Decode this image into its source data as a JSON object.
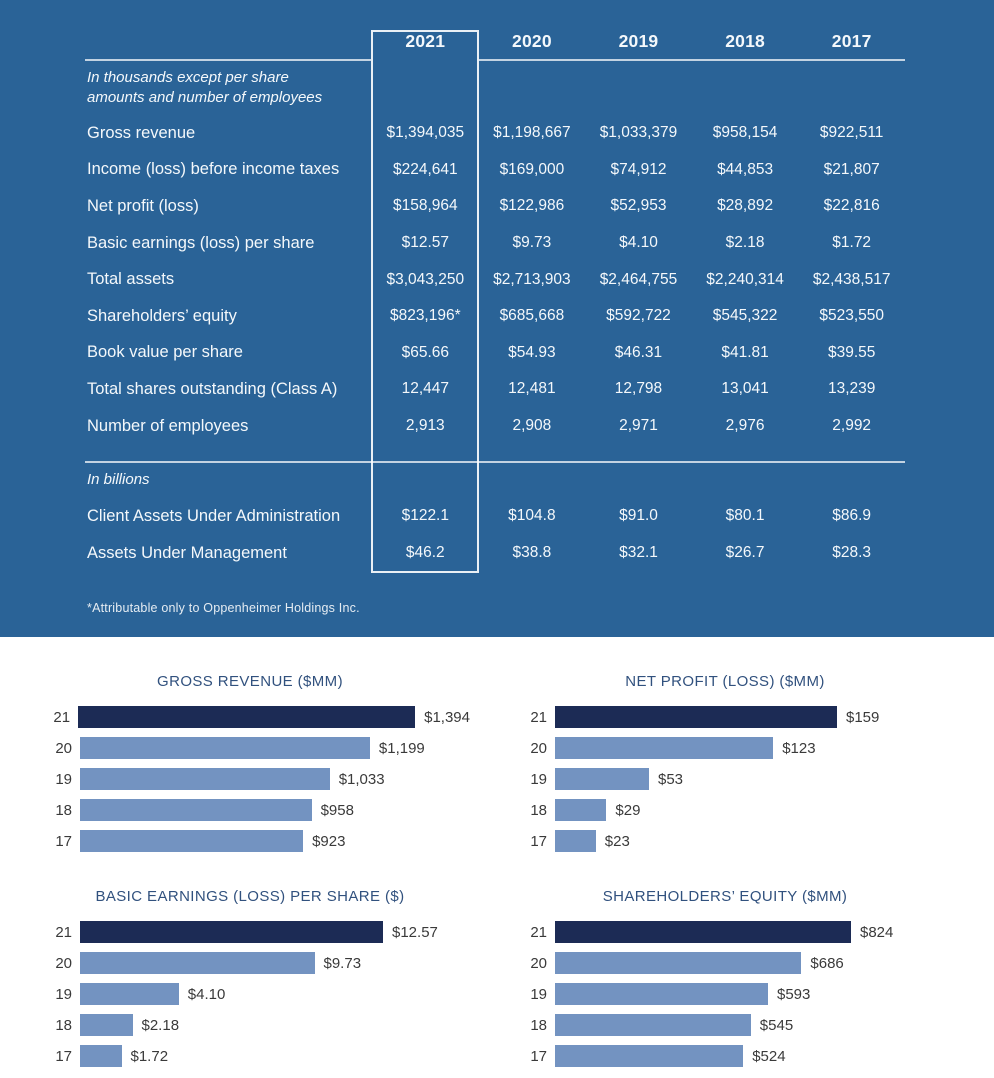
{
  "colors": {
    "panel": "#2a6397",
    "navy": "#1c2b55",
    "light": "#7393c1",
    "title": "#31517e",
    "ink": "#3a3a3a",
    "text": "#f4f8fb"
  },
  "table": {
    "years": [
      "2021",
      "2020",
      "2019",
      "2018",
      "2017"
    ],
    "note_thousands": "In thousands except per share amounts and number of employees",
    "rows": [
      {
        "label": "Gross revenue",
        "values": [
          "$1,394,035",
          "$1,198,667",
          "$1,033,379",
          "$958,154",
          "$922,511"
        ]
      },
      {
        "label": "Income (loss) before income taxes",
        "values": [
          "$224,641",
          "$169,000",
          "$74,912",
          "$44,853",
          "$21,807"
        ]
      },
      {
        "label": "Net profit (loss)",
        "values": [
          "$158,964",
          "$122,986",
          "$52,953",
          "$28,892",
          "$22,816"
        ]
      },
      {
        "label": "Basic earnings (loss) per share",
        "values": [
          "$12.57",
          "$9.73",
          "$4.10",
          "$2.18",
          "$1.72"
        ]
      },
      {
        "label": "Total assets",
        "values": [
          "$3,043,250",
          "$2,713,903",
          "$2,464,755",
          "$2,240,314",
          "$2,438,517"
        ]
      },
      {
        "label": "Shareholders’ equity",
        "values": [
          "$823,196*",
          "$685,668",
          "$592,722",
          "$545,322",
          "$523,550"
        ]
      },
      {
        "label": "Book value per share",
        "values": [
          "$65.66",
          "$54.93",
          "$46.31",
          "$41.81",
          "$39.55"
        ]
      },
      {
        "label": "Total shares outstanding (Class A)",
        "values": [
          "12,447",
          "12,481",
          "12,798",
          "13,041",
          "13,239"
        ]
      },
      {
        "label": "Number of employees",
        "values": [
          "2,913",
          "2,908",
          "2,971",
          "2,976",
          "2,992"
        ]
      }
    ],
    "note_billions": "In billions",
    "rows_billions": [
      {
        "label": "Client Assets Under Administration",
        "values": [
          "$122.1",
          "$104.8",
          "$91.0",
          "$80.1",
          "$86.9"
        ]
      },
      {
        "label": "Assets Under Management",
        "values": [
          "$46.2",
          "$38.8",
          "$32.1",
          "$26.7",
          "$28.3"
        ]
      }
    ],
    "footnote": "*Attributable only to Oppenheimer Holdings Inc."
  },
  "chart_data": [
    {
      "type": "bar",
      "orientation": "horizontal",
      "title": "GROSS REVENUE ($MM)",
      "categories": [
        "21",
        "20",
        "19",
        "18",
        "17"
      ],
      "values": [
        1394,
        1199,
        1033,
        958,
        923
      ],
      "value_labels": [
        "$1,394",
        "$1,199",
        "$1,033",
        "$958",
        "$923"
      ],
      "xlim": [
        0,
        1394
      ],
      "highlight_index": 0,
      "grid": false,
      "value_label_position": "right-of-bar"
    },
    {
      "type": "bar",
      "orientation": "horizontal",
      "title": "NET PROFIT (LOSS) ($MM)",
      "categories": [
        "21",
        "20",
        "19",
        "18",
        "17"
      ],
      "values": [
        159,
        123,
        53,
        29,
        23
      ],
      "value_labels": [
        "$159",
        "$123",
        "$53",
        "$29",
        "$23"
      ],
      "xlim": [
        0,
        159
      ],
      "highlight_index": 0,
      "grid": false,
      "value_label_position": "right-of-bar"
    },
    {
      "type": "bar",
      "orientation": "horizontal",
      "title": "BASIC EARNINGS (LOSS) PER SHARE ($)",
      "categories": [
        "21",
        "20",
        "19",
        "18",
        "17"
      ],
      "values": [
        12.57,
        9.73,
        4.1,
        2.18,
        1.72
      ],
      "value_labels": [
        "$12.57",
        "$9.73",
        "$4.10",
        "$2.18",
        "$1.72"
      ],
      "xlim": [
        0,
        12.57
      ],
      "highlight_index": 0,
      "grid": false,
      "value_label_position": "right-of-bar"
    },
    {
      "type": "bar",
      "orientation": "horizontal",
      "title": "SHAREHOLDERS’ EQUITY ($MM)",
      "categories": [
        "21",
        "20",
        "19",
        "18",
        "17"
      ],
      "values": [
        824,
        686,
        593,
        545,
        524
      ],
      "value_labels": [
        "$824",
        "$686",
        "$593",
        "$545",
        "$524"
      ],
      "xlim": [
        0,
        824
      ],
      "highlight_index": 0,
      "grid": false,
      "value_label_position": "right-of-bar"
    }
  ]
}
